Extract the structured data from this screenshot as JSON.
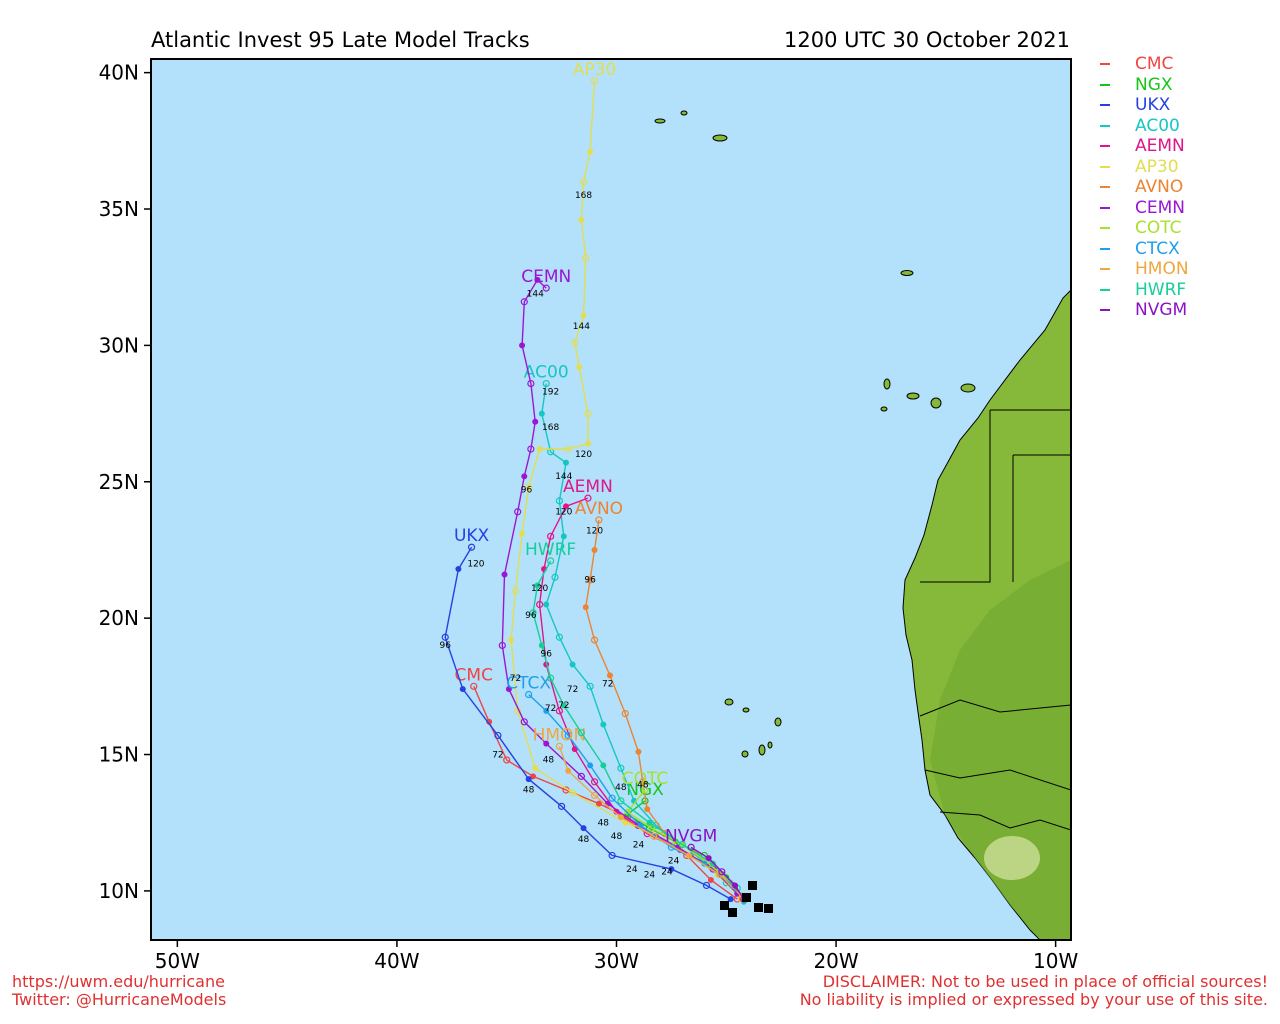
{
  "header": {
    "title": "Atlantic Invest 95 Late Model Tracks",
    "datetime": "1200 UTC 30 October 2021"
  },
  "axes": {
    "x_ticks": [
      "50W",
      "40W",
      "30W",
      "20W",
      "10W"
    ],
    "y_ticks": [
      "40N",
      "35N",
      "30N",
      "25N",
      "20N",
      "15N",
      "10N"
    ]
  },
  "map": {
    "extent": {
      "lon": [
        -51.2,
        -9.3
      ],
      "lat": [
        8.2,
        40.5
      ]
    },
    "ocean_color": "#b3e1fb",
    "land_color": "#86b83a"
  },
  "legend": [
    {
      "name": "CMC",
      "color": "#f04545"
    },
    {
      "name": "NGX",
      "color": "#17c517"
    },
    {
      "name": "UKX",
      "color": "#2441e3"
    },
    {
      "name": "AC00",
      "color": "#15c6c2"
    },
    {
      "name": "AEMN",
      "color": "#e0158b"
    },
    {
      "name": "AP30",
      "color": "#e2de4e"
    },
    {
      "name": "AVNO",
      "color": "#ec8431"
    },
    {
      "name": "CEMN",
      "color": "#9b16d3"
    },
    {
      "name": "COTC",
      "color": "#a8e02d"
    },
    {
      "name": "CTCX",
      "color": "#1f9fea"
    },
    {
      "name": "HMON",
      "color": "#f0a63f"
    },
    {
      "name": "HWRF",
      "color": "#16cf98"
    },
    {
      "name": "NVGM",
      "color": "#8c12c6"
    }
  ],
  "tracks": [
    {
      "name": "CMC",
      "color": "#f04545",
      "label_at": 0,
      "points": [
        [
          -36.5,
          17.5
        ],
        [
          -35.8,
          16.2
        ],
        [
          -35.0,
          14.8
        ],
        [
          -33.8,
          14.2
        ],
        [
          -32.3,
          13.7
        ],
        [
          -30.8,
          13.2
        ],
        [
          -29.5,
          12.7
        ],
        [
          -28.2,
          12.0
        ],
        [
          -26.8,
          11.3
        ],
        [
          -25.7,
          10.4
        ],
        [
          -24.5,
          9.7
        ]
      ],
      "hour_labels": [
        {
          "t": "72",
          "at": [
            -35.4,
            14.9
          ]
        },
        {
          "t": "48",
          "at": [
            -34.0,
            13.6
          ]
        }
      ]
    },
    {
      "name": "NGX",
      "color": "#17c517",
      "label_at": 0,
      "points": [
        [
          -28.7,
          13.3
        ],
        [
          -29.5,
          12.8
        ],
        [
          -28.5,
          12.3
        ],
        [
          -27.3,
          11.8
        ],
        [
          -26.0,
          11.3
        ],
        [
          -25.0,
          10.5
        ],
        [
          -24.3,
          9.8
        ]
      ],
      "hour_labels": []
    },
    {
      "name": "UKX",
      "color": "#2441e3",
      "label_at": 0,
      "points": [
        [
          -36.6,
          22.6
        ],
        [
          -37.2,
          21.8
        ],
        [
          -37.8,
          19.3
        ],
        [
          -37.0,
          17.4
        ],
        [
          -35.4,
          15.7
        ],
        [
          -34.0,
          14.1
        ],
        [
          -32.5,
          13.1
        ],
        [
          -31.5,
          12.3
        ],
        [
          -30.2,
          11.3
        ],
        [
          -27.5,
          10.8
        ],
        [
          -25.9,
          10.2
        ],
        [
          -24.8,
          9.7
        ]
      ],
      "hour_labels": [
        {
          "t": "120",
          "at": [
            -36.4,
            21.9
          ]
        },
        {
          "t": "96",
          "at": [
            -37.8,
            18.9
          ]
        },
        {
          "t": "48",
          "at": [
            -31.5,
            11.8
          ]
        }
      ]
    },
    {
      "name": "AC00",
      "color": "#15c6c2",
      "label_at": 0,
      "points": [
        [
          -33.2,
          28.6
        ],
        [
          -33.4,
          27.5
        ],
        [
          -33.0,
          26.1
        ],
        [
          -32.3,
          25.7
        ],
        [
          -32.6,
          24.3
        ],
        [
          -32.4,
          23.0
        ],
        [
          -32.8,
          21.5
        ],
        [
          -33.2,
          20.5
        ],
        [
          -32.6,
          19.3
        ],
        [
          -32.0,
          18.3
        ],
        [
          -31.2,
          17.5
        ],
        [
          -30.6,
          16.1
        ],
        [
          -29.8,
          14.5
        ],
        [
          -29.2,
          13.3
        ],
        [
          -28.2,
          12.4
        ],
        [
          -26.5,
          11.4
        ],
        [
          -25.0,
          10.3
        ],
        [
          -24.2,
          9.6
        ]
      ],
      "hour_labels": [
        {
          "t": "192",
          "at": [
            -33.0,
            28.2
          ]
        },
        {
          "t": "168",
          "at": [
            -33.0,
            26.9
          ]
        },
        {
          "t": "144",
          "at": [
            -32.4,
            25.1
          ]
        },
        {
          "t": "120",
          "at": [
            -31.5,
            25.9
          ]
        },
        {
          "t": "72",
          "at": [
            -32.0,
            17.3
          ]
        }
      ]
    },
    {
      "name": "AEMN",
      "color": "#e0158b",
      "label_at": 0,
      "points": [
        [
          -31.3,
          24.4
        ],
        [
          -32.3,
          24.1
        ],
        [
          -33.0,
          23.0
        ],
        [
          -33.3,
          21.8
        ],
        [
          -33.5,
          20.5
        ],
        [
          -33.2,
          18.3
        ],
        [
          -32.6,
          16.6
        ],
        [
          -31.9,
          15.2
        ],
        [
          -31.0,
          14.0
        ],
        [
          -30.0,
          12.9
        ],
        [
          -28.6,
          12.1
        ],
        [
          -27.1,
          11.5
        ],
        [
          -25.7,
          10.9
        ],
        [
          -24.6,
          10.1
        ]
      ],
      "hour_labels": [
        {
          "t": "120",
          "at": [
            -32.4,
            23.8
          ]
        },
        {
          "t": "72",
          "at": [
            -32.4,
            16.7
          ]
        }
      ]
    },
    {
      "name": "AP30",
      "color": "#e2de4e",
      "label_at": 0,
      "points": [
        [
          -31.0,
          39.7
        ],
        [
          -31.2,
          37.1
        ],
        [
          -31.5,
          36.0
        ],
        [
          -31.6,
          34.6
        ],
        [
          -31.4,
          33.2
        ],
        [
          -31.5,
          31.1
        ],
        [
          -31.9,
          30.1
        ],
        [
          -31.7,
          29.2
        ],
        [
          -31.3,
          27.5
        ],
        [
          -31.3,
          26.4
        ],
        [
          -32.2,
          26.2
        ],
        [
          -33.5,
          26.2
        ],
        [
          -34.0,
          24.8
        ],
        [
          -34.3,
          23.1
        ],
        [
          -34.6,
          21.0
        ],
        [
          -34.8,
          19.2
        ],
        [
          -34.5,
          16.6
        ],
        [
          -33.7,
          14.5
        ],
        [
          -32.0,
          13.6
        ],
        [
          -29.6,
          12.5
        ],
        [
          -27.3,
          11.7
        ],
        [
          -25.4,
          10.6
        ],
        [
          -24.3,
          9.7
        ]
      ],
      "hour_labels": [
        {
          "t": "168",
          "at": [
            -31.5,
            35.4
          ]
        },
        {
          "t": "144",
          "at": [
            -31.6,
            30.6
          ]
        }
      ]
    },
    {
      "name": "AVNO",
      "color": "#ec8431",
      "label_at": 0,
      "points": [
        [
          -30.8,
          23.6
        ],
        [
          -31.0,
          22.5
        ],
        [
          -31.2,
          21.4
        ],
        [
          -31.4,
          20.4
        ],
        [
          -31.0,
          19.2
        ],
        [
          -30.3,
          17.9
        ],
        [
          -29.6,
          16.5
        ],
        [
          -29.0,
          15.1
        ],
        [
          -28.8,
          14.0
        ],
        [
          -28.6,
          13.0
        ],
        [
          -27.8,
          12.1
        ],
        [
          -26.4,
          11.4
        ],
        [
          -25.2,
          10.6
        ],
        [
          -24.3,
          9.7
        ]
      ],
      "hour_labels": [
        {
          "t": "120",
          "at": [
            -31.0,
            23.1
          ]
        },
        {
          "t": "96",
          "at": [
            -31.2,
            21.3
          ]
        },
        {
          "t": "72",
          "at": [
            -30.4,
            17.5
          ]
        }
      ]
    },
    {
      "name": "CEMN",
      "color": "#9b16d3",
      "label_at": 0,
      "points": [
        [
          -33.2,
          32.1
        ],
        [
          -33.6,
          32.4
        ],
        [
          -34.2,
          31.6
        ],
        [
          -34.3,
          30.0
        ],
        [
          -33.9,
          28.6
        ],
        [
          -33.7,
          27.2
        ],
        [
          -33.9,
          26.2
        ],
        [
          -34.2,
          25.2
        ],
        [
          -34.5,
          23.9
        ],
        [
          -35.1,
          21.6
        ],
        [
          -35.2,
          19.0
        ],
        [
          -34.9,
          17.4
        ],
        [
          -34.2,
          16.2
        ],
        [
          -33.2,
          15.4
        ],
        [
          -31.6,
          14.2
        ],
        [
          -30.4,
          13.2
        ],
        [
          -29.0,
          12.4
        ],
        [
          -27.2,
          11.6
        ],
        [
          -25.6,
          10.8
        ],
        [
          -24.5,
          9.9
        ]
      ],
      "hour_labels": [
        {
          "t": "144",
          "at": [
            -33.7,
            31.8
          ]
        },
        {
          "t": "96",
          "at": [
            -34.1,
            24.6
          ]
        },
        {
          "t": "72",
          "at": [
            -34.6,
            17.7
          ]
        }
      ]
    },
    {
      "name": "COTC",
      "color": "#a8e02d",
      "label_at": 0,
      "points": [
        [
          -28.7,
          13.7
        ],
        [
          -29.5,
          12.9
        ],
        [
          -28.4,
          12.3
        ],
        [
          -27.0,
          11.7
        ],
        [
          -25.8,
          11.0
        ],
        [
          -24.8,
          10.3
        ]
      ],
      "hour_labels": []
    },
    {
      "name": "CTCX",
      "color": "#1f9fea",
      "label_at": 0,
      "points": [
        [
          -34.0,
          17.2
        ],
        [
          -33.2,
          16.6
        ],
        [
          -32.2,
          15.7
        ],
        [
          -31.2,
          14.6
        ],
        [
          -30.2,
          13.4
        ],
        [
          -28.9,
          12.4
        ],
        [
          -27.5,
          11.6
        ],
        [
          -26.0,
          11.0
        ],
        [
          -24.7,
          10.2
        ]
      ],
      "hour_labels": [
        {
          "t": "72",
          "at": [
            -33.0,
            16.6
          ]
        }
      ]
    },
    {
      "name": "HMON",
      "color": "#f0a63f",
      "label_at": 0,
      "points": [
        [
          -32.6,
          15.3
        ],
        [
          -32.2,
          14.4
        ],
        [
          -31.0,
          13.5
        ],
        [
          -29.8,
          12.7
        ],
        [
          -28.3,
          12.0
        ],
        [
          -26.7,
          11.3
        ],
        [
          -25.3,
          10.6
        ],
        [
          -24.3,
          9.8
        ]
      ],
      "hour_labels": [
        {
          "t": "48",
          "at": [
            -33.1,
            14.7
          ]
        }
      ]
    },
    {
      "name": "HWRF",
      "color": "#16cf98",
      "label_at": 0,
      "points": [
        [
          -33.0,
          22.1
        ],
        [
          -33.6,
          21.2
        ],
        [
          -33.8,
          20.2
        ],
        [
          -33.4,
          19.0
        ],
        [
          -33.0,
          17.8
        ],
        [
          -32.4,
          16.8
        ],
        [
          -31.6,
          15.8
        ],
        [
          -30.6,
          14.6
        ],
        [
          -29.8,
          13.3
        ],
        [
          -28.5,
          12.5
        ],
        [
          -27.0,
          11.7
        ],
        [
          -25.6,
          11.0
        ],
        [
          -24.5,
          10.1
        ]
      ],
      "hour_labels": [
        {
          "t": "120",
          "at": [
            -33.5,
            21.0
          ]
        },
        {
          "t": "96",
          "at": [
            -33.9,
            20.0
          ]
        },
        {
          "t": "96",
          "at": [
            -33.2,
            18.6
          ]
        }
      ]
    },
    {
      "name": "NVGM",
      "color": "#8c12c6",
      "label_at": 0,
      "points": [
        [
          -26.6,
          11.6
        ],
        [
          -25.8,
          11.2
        ],
        [
          -25.2,
          10.7
        ],
        [
          -24.6,
          10.2
        ],
        [
          -24.2,
          9.7
        ]
      ],
      "hour_labels": [
        {
          "t": "24",
          "at": [
            -27.4,
            11.0
          ]
        }
      ]
    }
  ],
  "hour_markers_misc": [
    {
      "t": "48",
      "at": [
        -30.6,
        12.4
      ]
    },
    {
      "t": "48",
      "at": [
        -30.0,
        11.9
      ]
    },
    {
      "t": "24",
      "at": [
        -29.0,
        11.6
      ]
    },
    {
      "t": "24",
      "at": [
        -28.5,
        10.5
      ]
    },
    {
      "t": "24",
      "at": [
        -27.7,
        10.6
      ]
    },
    {
      "t": "24",
      "at": [
        -29.3,
        10.7
      ]
    },
    {
      "t": "48",
      "at": [
        -29.8,
        13.7
      ]
    },
    {
      "t": "48",
      "at": [
        -28.8,
        13.8
      ]
    }
  ],
  "footer": {
    "url": "https://uwm.edu/hurricane",
    "twitter": "Twitter: @HurricaneModels",
    "disclaimer_1": "DISCLAIMER: Not to be used in place of official sources!",
    "disclaimer_2": "No liability is implied or expressed by your use of this site."
  }
}
